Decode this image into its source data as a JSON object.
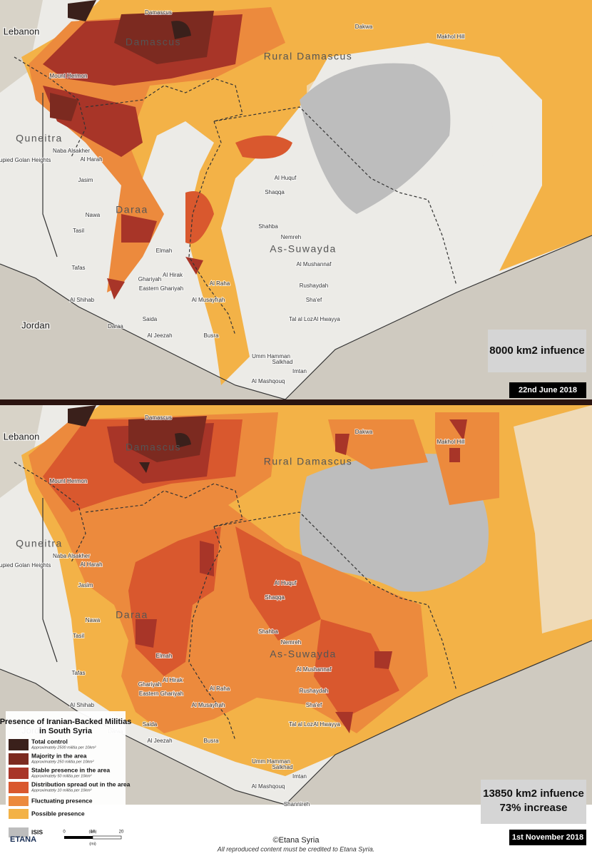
{
  "panels": [
    {
      "influence": "8000 km2 infuence",
      "date": "22nd June 2018"
    },
    {
      "influence": "13850 km2 infuence",
      "increase": "73% increase",
      "date": "1st November 2018"
    }
  ],
  "countries": [
    "Lebanon",
    "Jordan"
  ],
  "regions": [
    "Damascus",
    "Rural Damascus",
    "Quneitra",
    "Daraa",
    "As-Suwayda"
  ],
  "places": [
    "Damascus",
    "Dakwa",
    "Makhol Hill",
    "Mount Hermon",
    "Naba Alsakher",
    "Al Harah",
    "Occupied Golan Heights",
    "Jasim",
    "Nawa",
    "Tasil",
    "Tafas",
    "Al Shihab",
    "Daraa",
    "Elmah",
    "Al Hirak",
    "Eastern Ghariyah",
    "Saida",
    "Al Musayfrah",
    "Al Jeezah",
    "Busra",
    "Ghariyah",
    "Al Huquf",
    "Shaqqa",
    "Shahba",
    "Nemreh",
    "Al Mushannaf",
    "Rushaydah",
    "Al Raha",
    "Sha'ef",
    "Tal al Loz",
    "Al Hwayya",
    "Umm Hamman",
    "Al Mashqouq",
    "Imtan",
    "Salkhad",
    "Shannireh"
  ],
  "legend": {
    "title": "Presence of Iranian-Backed Militias in South Syria",
    "items": [
      {
        "label": "Total control",
        "note": "Approximately 2500 militia per 10km²",
        "color": "#3a201b"
      },
      {
        "label": "Majority in the area",
        "note": "Approximately 250 militia per 10km²",
        "color": "#7c2a20"
      },
      {
        "label": "Stable presence in the area",
        "note": "Approximately 50 militia per 10km²",
        "color": "#a83528"
      },
      {
        "label": "Distribution spread out in the area",
        "note": "Approximately 10 militia per 10km²",
        "color": "#d9582e"
      },
      {
        "label": "Fluctuating presence",
        "color": "#ec8a3d"
      },
      {
        "label": "Possible presence",
        "color": "#f3b247"
      },
      {
        "label": "ISIS",
        "color": "#bdbdbd"
      }
    ],
    "scale": {
      "ticks": [
        "0",
        "10",
        "20"
      ],
      "units": [
        "(km)",
        "(mi)"
      ]
    },
    "logo": "ETANA"
  },
  "credit": "©Etana Syria",
  "disclaimer": "All reproduced content must be credited to Etana Syria."
}
